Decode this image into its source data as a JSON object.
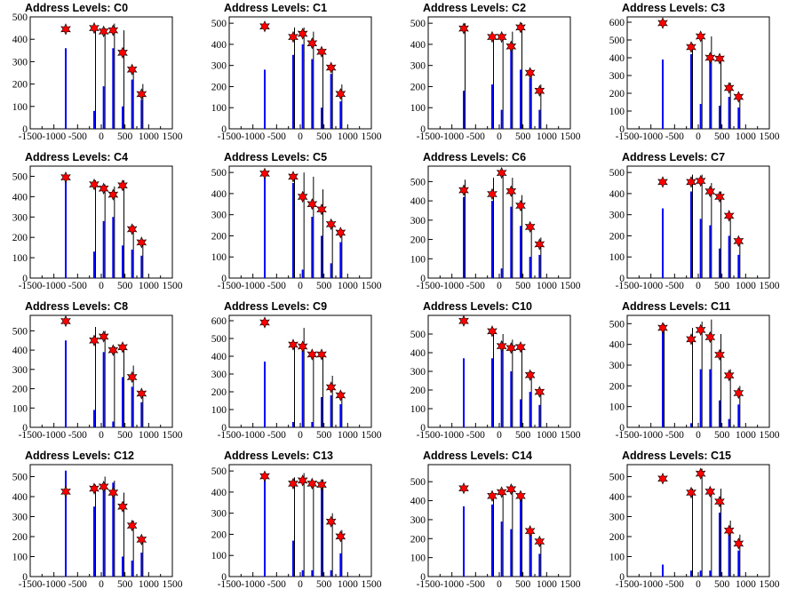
{
  "chart_data": [
    {
      "type": "bar",
      "title": "Address Levels: C0",
      "xlim": [
        -1500,
        1500
      ],
      "ylim": [
        0,
        500
      ],
      "yticks": [
        0,
        100,
        200,
        300,
        400,
        500
      ],
      "xticks": [
        -1500,
        -1000,
        -500,
        0,
        500,
        1000,
        1500
      ],
      "peaks_x": [
        -750,
        -150,
        50,
        250,
        450,
        650,
        850
      ],
      "black_heights": [
        0,
        460,
        450,
        470,
        440,
        270,
        200
      ],
      "blue_heights": [
        360,
        80,
        190,
        360,
        100,
        220,
        130
      ],
      "star_values": [
        445,
        450,
        435,
        440,
        340,
        265,
        155
      ]
    },
    {
      "type": "bar",
      "title": "Address Levels: C1",
      "xlim": [
        -1500,
        1500
      ],
      "ylim": [
        0,
        530
      ],
      "yticks": [
        0,
        100,
        200,
        300,
        400,
        500
      ],
      "xticks": [
        -1500,
        -1000,
        -500,
        0,
        500,
        1000,
        1500
      ],
      "peaks_x": [
        -750,
        -150,
        50,
        250,
        450,
        650,
        850
      ],
      "black_heights": [
        0,
        480,
        480,
        460,
        370,
        300,
        210
      ],
      "blue_heights": [
        280,
        350,
        400,
        330,
        100,
        260,
        130
      ],
      "star_values": [
        485,
        435,
        450,
        405,
        365,
        290,
        165
      ]
    },
    {
      "type": "bar",
      "title": "Address Levels: C2",
      "xlim": [
        -1500,
        1500
      ],
      "ylim": [
        0,
        530
      ],
      "yticks": [
        0,
        100,
        200,
        300,
        400,
        500
      ],
      "xticks": [
        -1500,
        -1000,
        -500,
        0,
        500,
        1000,
        1500
      ],
      "peaks_x": [
        -750,
        -150,
        50,
        250,
        450,
        650,
        850
      ],
      "black_heights": [
        500,
        440,
        450,
        460,
        500,
        280,
        210
      ],
      "blue_heights": [
        180,
        210,
        90,
        370,
        280,
        240,
        90
      ],
      "star_values": [
        475,
        435,
        435,
        390,
        480,
        265,
        180
      ]
    },
    {
      "type": "bar",
      "title": "Address Levels: C3",
      "xlim": [
        -1500,
        1500
      ],
      "ylim": [
        0,
        630
      ],
      "yticks": [
        0,
        100,
        200,
        300,
        400,
        500,
        600
      ],
      "xticks": [
        -1500,
        -1000,
        -500,
        0,
        500,
        1000,
        1500
      ],
      "peaks_x": [
        -750,
        -150,
        50,
        250,
        450,
        650,
        850
      ],
      "black_heights": [
        0,
        480,
        530,
        520,
        410,
        260,
        190
      ],
      "blue_heights": [
        390,
        420,
        140,
        390,
        130,
        180,
        120
      ],
      "star_values": [
        595,
        460,
        520,
        400,
        395,
        230,
        180
      ]
    },
    {
      "type": "bar",
      "title": "Address Levels: C4",
      "xlim": [
        -1500,
        1500
      ],
      "ylim": [
        0,
        550
      ],
      "yticks": [
        0,
        100,
        200,
        300,
        400,
        500
      ],
      "xticks": [
        -1500,
        -1000,
        -500,
        0,
        500,
        1000,
        1500
      ],
      "peaks_x": [
        -750,
        -150,
        50,
        250,
        450,
        650,
        850
      ],
      "black_heights": [
        0,
        480,
        460,
        450,
        480,
        260,
        190
      ],
      "blue_heights": [
        490,
        130,
        280,
        300,
        160,
        140,
        110
      ],
      "star_values": [
        495,
        460,
        440,
        410,
        455,
        240,
        175
      ]
    },
    {
      "type": "bar",
      "title": "Address Levels: C5",
      "xlim": [
        -1500,
        1500
      ],
      "ylim": [
        0,
        530
      ],
      "yticks": [
        0,
        100,
        200,
        300,
        400,
        500
      ],
      "xticks": [
        -1500,
        -1000,
        -500,
        0,
        500,
        1000,
        1500
      ],
      "peaks_x": [
        -750,
        -150,
        50,
        250,
        450,
        650,
        850
      ],
      "black_heights": [
        0,
        480,
        500,
        480,
        420,
        270,
        230
      ],
      "blue_heights": [
        490,
        450,
        40,
        290,
        200,
        70,
        170
      ],
      "star_values": [
        495,
        480,
        385,
        350,
        325,
        255,
        215
      ]
    },
    {
      "type": "bar",
      "title": "Address Levels: C6",
      "xlim": [
        -1500,
        1500
      ],
      "ylim": [
        0,
        580
      ],
      "yticks": [
        0,
        100,
        200,
        300,
        400,
        500
      ],
      "xticks": [
        -1500,
        -1000,
        -500,
        0,
        500,
        1000,
        1500
      ],
      "peaks_x": [
        -750,
        -150,
        50,
        250,
        450,
        650,
        850
      ],
      "black_heights": [
        510,
        520,
        550,
        520,
        430,
        280,
        210
      ],
      "blue_heights": [
        420,
        400,
        50,
        370,
        270,
        110,
        120
      ],
      "star_values": [
        455,
        435,
        545,
        450,
        375,
        265,
        175
      ]
    },
    {
      "type": "bar",
      "title": "Address Levels: C7",
      "xlim": [
        -1500,
        1500
      ],
      "ylim": [
        0,
        530
      ],
      "yticks": [
        0,
        100,
        200,
        300,
        400,
        500
      ],
      "xticks": [
        -1500,
        -1000,
        -500,
        0,
        500,
        1000,
        1500
      ],
      "peaks_x": [
        -750,
        -150,
        50,
        250,
        450,
        650,
        850
      ],
      "black_heights": [
        0,
        490,
        490,
        450,
        410,
        300,
        190
      ],
      "blue_heights": [
        330,
        410,
        280,
        250,
        140,
        200,
        110
      ],
      "star_values": [
        455,
        455,
        460,
        410,
        385,
        295,
        175
      ]
    },
    {
      "type": "bar",
      "title": "Address Levels: C8",
      "xlim": [
        -1500,
        1500
      ],
      "ylim": [
        0,
        580
      ],
      "yticks": [
        0,
        100,
        200,
        300,
        400,
        500
      ],
      "xticks": [
        -1500,
        -1000,
        -500,
        0,
        500,
        1000,
        1500
      ],
      "peaks_x": [
        -750,
        -150,
        50,
        250,
        450,
        650,
        850
      ],
      "black_heights": [
        0,
        520,
        500,
        420,
        420,
        320,
        190
      ],
      "blue_heights": [
        450,
        90,
        390,
        30,
        260,
        210,
        130
      ],
      "star_values": [
        550,
        450,
        470,
        400,
        415,
        260,
        175
      ]
    },
    {
      "type": "bar",
      "title": "Address Levels: C9",
      "xlim": [
        -1500,
        1500
      ],
      "ylim": [
        0,
        630
      ],
      "yticks": [
        0,
        100,
        200,
        300,
        400,
        500,
        600
      ],
      "xticks": [
        -1500,
        -1000,
        -500,
        0,
        500,
        1000,
        1500
      ],
      "peaks_x": [
        -750,
        -150,
        50,
        250,
        450,
        650,
        850
      ],
      "black_heights": [
        0,
        480,
        560,
        420,
        420,
        290,
        200
      ],
      "blue_heights": [
        370,
        30,
        430,
        30,
        170,
        180,
        130
      ],
      "star_values": [
        590,
        465,
        455,
        410,
        410,
        225,
        180
      ]
    },
    {
      "type": "bar",
      "title": "Address Levels: C10",
      "xlim": [
        -1500,
        1500
      ],
      "ylim": [
        0,
        600
      ],
      "yticks": [
        0,
        100,
        200,
        300,
        400,
        500
      ],
      "xticks": [
        -1500,
        -1000,
        -500,
        0,
        500,
        1000,
        1500
      ],
      "peaks_x": [
        -750,
        -150,
        50,
        250,
        450,
        650,
        850
      ],
      "black_heights": [
        0,
        530,
        500,
        470,
        440,
        300,
        200
      ],
      "blue_heights": [
        370,
        370,
        460,
        300,
        150,
        190,
        120
      ],
      "star_values": [
        570,
        515,
        435,
        425,
        430,
        280,
        190
      ]
    },
    {
      "type": "bar",
      "title": "Address Levels: C11",
      "xlim": [
        -1500,
        1500
      ],
      "ylim": [
        0,
        540
      ],
      "yticks": [
        0,
        100,
        200,
        300,
        400,
        500
      ],
      "xticks": [
        -1500,
        -1000,
        -500,
        0,
        500,
        1000,
        1500
      ],
      "peaks_x": [
        -750,
        -150,
        50,
        250,
        450,
        650,
        850
      ],
      "black_heights": [
        500,
        480,
        510,
        520,
        450,
        280,
        200
      ],
      "blue_heights": [
        490,
        20,
        280,
        280,
        130,
        40,
        110
      ],
      "star_values": [
        480,
        425,
        470,
        435,
        350,
        250,
        165
      ]
    },
    {
      "type": "bar",
      "title": "Address Levels: C12",
      "xlim": [
        -1500,
        1500
      ],
      "ylim": [
        0,
        560
      ],
      "yticks": [
        0,
        100,
        200,
        300,
        400,
        500
      ],
      "xticks": [
        -1500,
        -1000,
        -500,
        0,
        500,
        1000,
        1500
      ],
      "peaks_x": [
        -750,
        -150,
        50,
        250,
        450,
        650,
        850
      ],
      "black_heights": [
        0,
        460,
        500,
        480,
        420,
        280,
        200
      ],
      "blue_heights": [
        530,
        350,
        460,
        470,
        100,
        80,
        120
      ],
      "star_values": [
        425,
        440,
        450,
        420,
        350,
        255,
        185
      ]
    },
    {
      "type": "bar",
      "title": "Address Levels: C13",
      "xlim": [
        -1500,
        1500
      ],
      "ylim": [
        0,
        530
      ],
      "yticks": [
        0,
        100,
        200,
        300,
        400,
        500
      ],
      "xticks": [
        -1500,
        -1000,
        -500,
        0,
        500,
        1000,
        1500
      ],
      "peaks_x": [
        -750,
        -150,
        50,
        250,
        450,
        650,
        850
      ],
      "black_heights": [
        0,
        470,
        490,
        450,
        460,
        300,
        220
      ],
      "blue_heights": [
        480,
        170,
        30,
        30,
        420,
        30,
        110
      ],
      "star_values": [
        475,
        440,
        455,
        440,
        435,
        260,
        190
      ]
    },
    {
      "type": "bar",
      "title": "Address Levels: C14",
      "xlim": [
        -1500,
        1500
      ],
      "ylim": [
        0,
        590
      ],
      "yticks": [
        0,
        100,
        200,
        300,
        400,
        500
      ],
      "xticks": [
        -1500,
        -1000,
        -500,
        0,
        500,
        1000,
        1500
      ],
      "peaks_x": [
        -750,
        -150,
        50,
        250,
        450,
        650,
        850
      ],
      "black_heights": [
        0,
        440,
        460,
        480,
        420,
        250,
        190
      ],
      "blue_heights": [
        370,
        380,
        290,
        250,
        420,
        220,
        120
      ],
      "star_values": [
        465,
        425,
        445,
        460,
        425,
        240,
        185
      ]
    },
    {
      "type": "bar",
      "title": "Address Levels: C15",
      "xlim": [
        -1500,
        1500
      ],
      "ylim": [
        0,
        560
      ],
      "yticks": [
        0,
        100,
        200,
        300,
        400,
        500
      ],
      "xticks": [
        -1500,
        -1000,
        -500,
        0,
        500,
        1000,
        1500
      ],
      "peaks_x": [
        -750,
        -150,
        50,
        250,
        450,
        650,
        850
      ],
      "black_heights": [
        0,
        440,
        540,
        440,
        440,
        280,
        210
      ],
      "blue_heights": [
        60,
        30,
        30,
        30,
        320,
        210,
        130
      ],
      "star_values": [
        490,
        420,
        515,
        425,
        375,
        230,
        165
      ]
    }
  ],
  "colors": {
    "black_bar": "#000000",
    "blue_bar": "#0000ff",
    "star_fill": "#ff0000",
    "star_stroke": "#000000",
    "axis": "#000000"
  }
}
